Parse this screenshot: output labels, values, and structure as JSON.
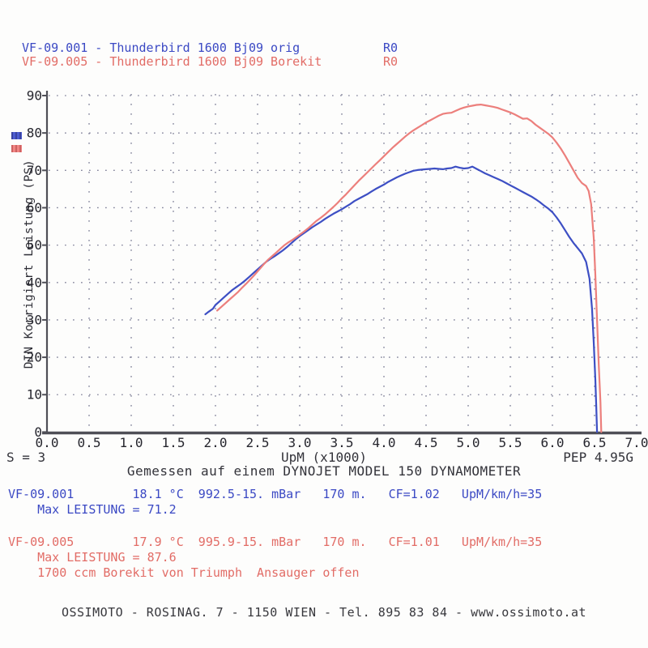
{
  "header": {
    "lines": [
      {
        "text": "VF-09.001 - Thunderbird 1600 Bj09 orig",
        "run": "R0",
        "color": "#3b49c4"
      },
      {
        "text": "VF-09.005 - Thunderbird 1600 Bj09 Borekit",
        "run": "R0",
        "color": "#e26c66"
      }
    ]
  },
  "legend": {
    "swatches": [
      {
        "name": "orig",
        "color": "#4d5cd0"
      },
      {
        "name": "borekit",
        "color": "#f08483"
      }
    ]
  },
  "chart_data": {
    "type": "line",
    "xlabel": "UpM (x1000)",
    "ylabel": "DIN Korrigiert Leistung (PS)",
    "xlim": [
      0,
      7
    ],
    "ylim": [
      0,
      90
    ],
    "grid": "dotted",
    "x_ticks": [
      "0.0",
      "0.5",
      "1.0",
      "1.5",
      "2.0",
      "2.5",
      "3.0",
      "3.5",
      "4.0",
      "4.5",
      "5.0",
      "5.5",
      "6.0",
      "6.5",
      "7.0"
    ],
    "y_ticks": [
      "0",
      "10",
      "20",
      "30",
      "40",
      "50",
      "60",
      "70",
      "80",
      "90"
    ],
    "series": [
      {
        "name": "VF-09.001 - Thunderbird 1600 Bj09 orig",
        "color": "#3d4fc4",
        "max_leistung": 71.2,
        "points": [
          [
            1.88,
            31.5
          ],
          [
            1.92,
            32.2
          ],
          [
            1.97,
            33.0
          ],
          [
            2.0,
            34.0
          ],
          [
            2.05,
            35.0
          ],
          [
            2.1,
            36.0
          ],
          [
            2.15,
            37.0
          ],
          [
            2.2,
            38.0
          ],
          [
            2.25,
            38.8
          ],
          [
            2.3,
            39.6
          ],
          [
            2.35,
            40.5
          ],
          [
            2.4,
            41.5
          ],
          [
            2.45,
            42.5
          ],
          [
            2.5,
            43.5
          ],
          [
            2.55,
            44.5
          ],
          [
            2.6,
            45.5
          ],
          [
            2.65,
            46.3
          ],
          [
            2.7,
            47.0
          ],
          [
            2.75,
            47.8
          ],
          [
            2.8,
            48.6
          ],
          [
            2.85,
            49.5
          ],
          [
            2.9,
            50.5
          ],
          [
            2.95,
            51.5
          ],
          [
            3.0,
            52.4
          ],
          [
            3.05,
            53.2
          ],
          [
            3.1,
            54.0
          ],
          [
            3.15,
            54.8
          ],
          [
            3.2,
            55.5
          ],
          [
            3.25,
            56.2
          ],
          [
            3.3,
            57.0
          ],
          [
            3.35,
            57.7
          ],
          [
            3.4,
            58.4
          ],
          [
            3.45,
            59.0
          ],
          [
            3.5,
            59.6
          ],
          [
            3.55,
            60.3
          ],
          [
            3.6,
            61.0
          ],
          [
            3.65,
            61.8
          ],
          [
            3.7,
            62.4
          ],
          [
            3.75,
            63.0
          ],
          [
            3.8,
            63.6
          ],
          [
            3.85,
            64.3
          ],
          [
            3.9,
            65.0
          ],
          [
            3.95,
            65.6
          ],
          [
            4.0,
            66.2
          ],
          [
            4.05,
            66.9
          ],
          [
            4.1,
            67.5
          ],
          [
            4.15,
            68.1
          ],
          [
            4.2,
            68.6
          ],
          [
            4.25,
            69.1
          ],
          [
            4.3,
            69.5
          ],
          [
            4.35,
            69.9
          ],
          [
            4.4,
            70.1
          ],
          [
            4.45,
            70.2
          ],
          [
            4.5,
            70.3
          ],
          [
            4.55,
            70.4
          ],
          [
            4.6,
            70.5
          ],
          [
            4.65,
            70.4
          ],
          [
            4.7,
            70.3
          ],
          [
            4.75,
            70.5
          ],
          [
            4.8,
            70.6
          ],
          [
            4.85,
            71.0
          ],
          [
            4.9,
            70.7
          ],
          [
            4.95,
            70.5
          ],
          [
            5.0,
            70.6
          ],
          [
            5.05,
            71.0
          ],
          [
            5.1,
            70.4
          ],
          [
            5.15,
            69.8
          ],
          [
            5.2,
            69.2
          ],
          [
            5.25,
            68.7
          ],
          [
            5.3,
            68.2
          ],
          [
            5.35,
            67.7
          ],
          [
            5.4,
            67.2
          ],
          [
            5.45,
            66.6
          ],
          [
            5.5,
            66.0
          ],
          [
            5.55,
            65.4
          ],
          [
            5.6,
            64.8
          ],
          [
            5.65,
            64.2
          ],
          [
            5.7,
            63.6
          ],
          [
            5.75,
            63.0
          ],
          [
            5.8,
            62.3
          ],
          [
            5.85,
            61.5
          ],
          [
            5.9,
            60.6
          ],
          [
            5.95,
            59.8
          ],
          [
            6.0,
            58.8
          ],
          [
            6.05,
            57.4
          ],
          [
            6.1,
            55.8
          ],
          [
            6.15,
            54.0
          ],
          [
            6.2,
            52.2
          ],
          [
            6.25,
            50.6
          ],
          [
            6.3,
            49.2
          ],
          [
            6.35,
            47.8
          ],
          [
            6.4,
            45.5
          ],
          [
            6.44,
            41.0
          ],
          [
            6.47,
            33.0
          ],
          [
            6.49,
            24.0
          ],
          [
            6.51,
            14.0
          ],
          [
            6.52,
            7.0
          ],
          [
            6.53,
            0.0
          ]
        ]
      },
      {
        "name": "VF-09.005 - Thunderbird 1600 Bj09 Borekit",
        "color": "#ec7f7c",
        "max_leistung": 87.6,
        "points": [
          [
            2.02,
            32.5
          ],
          [
            2.07,
            33.5
          ],
          [
            2.12,
            34.5
          ],
          [
            2.17,
            35.5
          ],
          [
            2.22,
            36.5
          ],
          [
            2.27,
            37.5
          ],
          [
            2.32,
            38.7
          ],
          [
            2.37,
            39.8
          ],
          [
            2.42,
            41.0
          ],
          [
            2.47,
            42.2
          ],
          [
            2.52,
            43.5
          ],
          [
            2.57,
            44.8
          ],
          [
            2.62,
            46.0
          ],
          [
            2.67,
            47.0
          ],
          [
            2.72,
            48.0
          ],
          [
            2.77,
            49.0
          ],
          [
            2.82,
            50.0
          ],
          [
            2.87,
            50.8
          ],
          [
            2.92,
            51.5
          ],
          [
            2.97,
            52.3
          ],
          [
            3.0,
            52.8
          ],
          [
            3.05,
            53.6
          ],
          [
            3.1,
            54.5
          ],
          [
            3.15,
            55.5
          ],
          [
            3.2,
            56.5
          ],
          [
            3.25,
            57.3
          ],
          [
            3.3,
            58.2
          ],
          [
            3.35,
            59.2
          ],
          [
            3.4,
            60.2
          ],
          [
            3.45,
            61.3
          ],
          [
            3.5,
            62.5
          ],
          [
            3.55,
            63.6
          ],
          [
            3.6,
            64.8
          ],
          [
            3.65,
            66.0
          ],
          [
            3.7,
            67.2
          ],
          [
            3.75,
            68.3
          ],
          [
            3.8,
            69.4
          ],
          [
            3.85,
            70.5
          ],
          [
            3.9,
            71.6
          ],
          [
            3.95,
            72.7
          ],
          [
            4.0,
            73.8
          ],
          [
            4.05,
            74.9
          ],
          [
            4.1,
            76.0
          ],
          [
            4.15,
            77.0
          ],
          [
            4.2,
            78.0
          ],
          [
            4.25,
            79.0
          ],
          [
            4.3,
            79.9
          ],
          [
            4.35,
            80.7
          ],
          [
            4.4,
            81.4
          ],
          [
            4.45,
            82.1
          ],
          [
            4.5,
            82.8
          ],
          [
            4.55,
            83.4
          ],
          [
            4.6,
            84.0
          ],
          [
            4.65,
            84.6
          ],
          [
            4.7,
            85.1
          ],
          [
            4.75,
            85.3
          ],
          [
            4.8,
            85.4
          ],
          [
            4.85,
            85.9
          ],
          [
            4.9,
            86.4
          ],
          [
            4.95,
            86.8
          ],
          [
            5.0,
            87.1
          ],
          [
            5.05,
            87.3
          ],
          [
            5.1,
            87.5
          ],
          [
            5.15,
            87.6
          ],
          [
            5.2,
            87.4
          ],
          [
            5.25,
            87.2
          ],
          [
            5.3,
            87.0
          ],
          [
            5.35,
            86.7
          ],
          [
            5.4,
            86.3
          ],
          [
            5.45,
            85.9
          ],
          [
            5.5,
            85.5
          ],
          [
            5.55,
            85.0
          ],
          [
            5.6,
            84.4
          ],
          [
            5.65,
            83.8
          ],
          [
            5.7,
            83.9
          ],
          [
            5.75,
            83.2
          ],
          [
            5.8,
            82.2
          ],
          [
            5.85,
            81.4
          ],
          [
            5.9,
            80.6
          ],
          [
            5.95,
            79.8
          ],
          [
            6.0,
            78.8
          ],
          [
            6.05,
            77.4
          ],
          [
            6.1,
            75.8
          ],
          [
            6.15,
            74.0
          ],
          [
            6.2,
            72.0
          ],
          [
            6.25,
            70.0
          ],
          [
            6.3,
            68.0
          ],
          [
            6.35,
            66.6
          ],
          [
            6.4,
            65.8
          ],
          [
            6.43,
            64.5
          ],
          [
            6.46,
            61.0
          ],
          [
            6.49,
            52.0
          ],
          [
            6.51,
            42.0
          ],
          [
            6.53,
            30.0
          ],
          [
            6.55,
            18.0
          ],
          [
            6.57,
            8.0
          ],
          [
            6.58,
            0.0
          ]
        ]
      }
    ]
  },
  "chart_footer": {
    "s_label": "S = 3",
    "pep_label": "PEP 4.95G",
    "dyno_caption": "Gemessen auf einem DYNOJET MODEL 150 DYNAMOMETER"
  },
  "results": {
    "run1": {
      "info": "VF-09.001        18.1 °C  992.5-15. mBar   170 m.   CF=1.02   UpM/km/h=35",
      "max": "    Max LEISTUNG = 71.2"
    },
    "run2": {
      "info": "VF-09.005        17.9 °C  995.9-15. mBar   170 m.   CF=1.01   UpM/km/h=35",
      "max": "    Max LEISTUNG = 87.6",
      "note": "    1700 ccm Borekit von Triumph  Ansauger offen"
    }
  },
  "footer": {
    "text": "OSSIMOTO - ROSINAG. 7 - 1150 WIEN - Tel. 895 83 84 - www.ossimoto.at"
  }
}
